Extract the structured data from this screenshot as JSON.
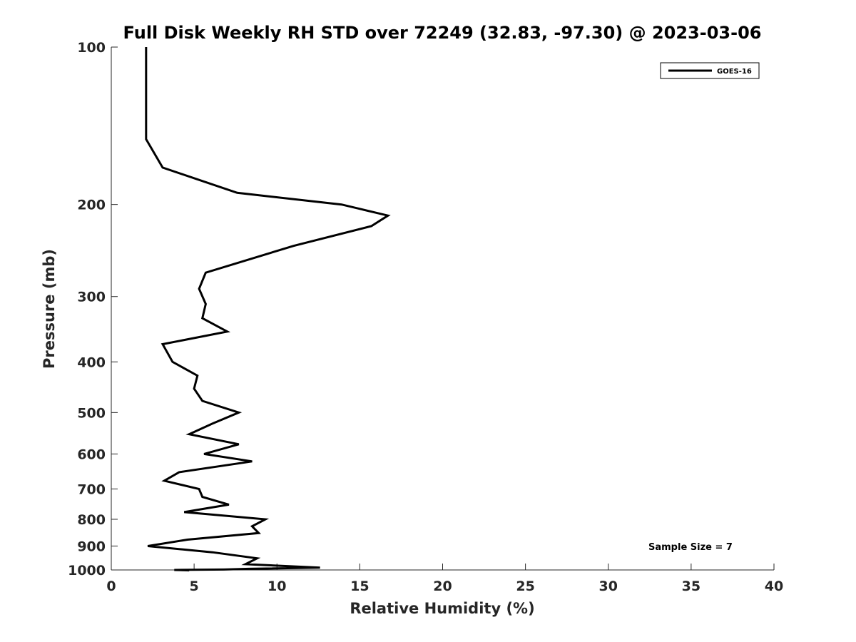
{
  "chart_data": {
    "type": "line",
    "title": "Full Disk Weekly RH STD over 72249 (32.83, -97.30) @ 2023-03-06",
    "xlabel": "Relative Humidity (%)",
    "ylabel": "Pressure (mb)",
    "xlim": [
      0,
      40
    ],
    "ylim": [
      100,
      1000
    ],
    "y_scale": "log",
    "y_reversed": true,
    "x_ticks": [
      0,
      5,
      10,
      15,
      20,
      25,
      30,
      35,
      40
    ],
    "y_ticks": [
      100,
      200,
      300,
      400,
      500,
      600,
      700,
      800,
      900,
      1000
    ],
    "grid": false,
    "legend_position": "top-right",
    "annotation": "Sample Size = 7",
    "series": [
      {
        "name": "GOES-16",
        "color": "#000000",
        "points": [
          [
            2.1,
            100
          ],
          [
            2.1,
            125
          ],
          [
            2.1,
            150
          ],
          [
            3.1,
            170
          ],
          [
            7.6,
            190
          ],
          [
            13.9,
            200
          ],
          [
            16.7,
            210
          ],
          [
            15.7,
            220
          ],
          [
            11.0,
            240
          ],
          [
            5.7,
            270
          ],
          [
            5.3,
            290
          ],
          [
            5.7,
            310
          ],
          [
            5.5,
            330
          ],
          [
            7.0,
            350
          ],
          [
            3.1,
            370
          ],
          [
            3.7,
            400
          ],
          [
            5.2,
            425
          ],
          [
            5.0,
            450
          ],
          [
            5.5,
            475
          ],
          [
            7.7,
            500
          ],
          [
            6.1,
            525
          ],
          [
            4.7,
            550
          ],
          [
            7.7,
            575
          ],
          [
            5.6,
            600
          ],
          [
            8.5,
            620
          ],
          [
            4.1,
            650
          ],
          [
            3.2,
            675
          ],
          [
            5.3,
            700
          ],
          [
            5.5,
            725
          ],
          [
            7.1,
            750
          ],
          [
            4.4,
            775
          ],
          [
            9.3,
            800
          ],
          [
            8.5,
            825
          ],
          [
            8.9,
            850
          ],
          [
            4.6,
            875
          ],
          [
            2.2,
            900
          ],
          [
            6.1,
            925
          ],
          [
            8.8,
            950
          ],
          [
            8.1,
            975
          ],
          [
            12.6,
            990
          ],
          [
            8.3,
            995
          ],
          [
            6.8,
            998
          ],
          [
            3.8,
            1000
          ],
          [
            4.7,
            1002
          ]
        ]
      }
    ]
  }
}
